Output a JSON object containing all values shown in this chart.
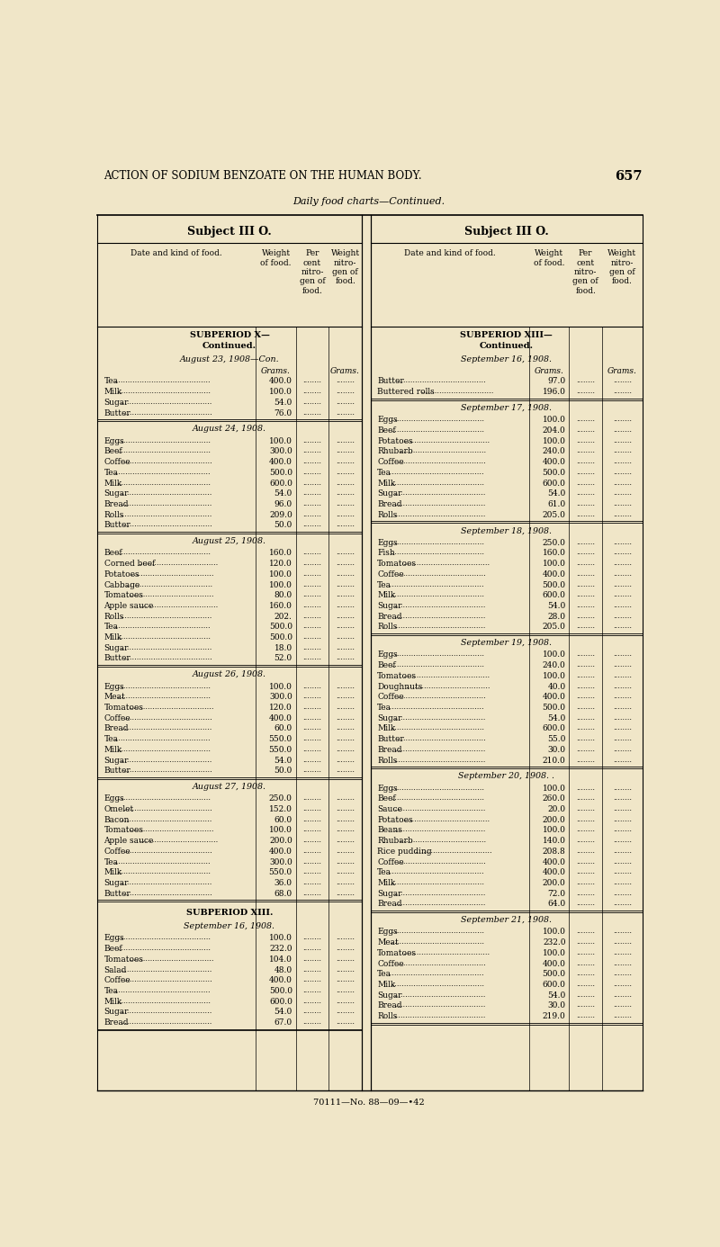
{
  "bg_color": "#f0e6c8",
  "page_title": "ACTION OF SODIUM BENZOATE ON THE HUMAN BODY.",
  "page_number": "657",
  "subtitle": "Daily food charts—Continued.",
  "header_left": "Subject III O.",
  "header_right": "Subject III O.",
  "col_headers": [
    "Date and kind of food.",
    "Weight\nof food.",
    "Per\ncent\nnitro-\ngen of\nfood.",
    "Weight\nnitro-\ngen of\nfood."
  ],
  "left_sections": [
    {
      "section_title": "SUBPERIOD X—\nContinued.",
      "subsections": [
        {
          "date": "August 23, 1908—Con.",
          "show_grams": true,
          "items": [
            [
              "Tea",
              "400.0"
            ],
            [
              "Milk",
              "100.0"
            ],
            [
              "Sugar",
              "54.0"
            ],
            [
              "Butter",
              "76.0"
            ]
          ]
        },
        {
          "date": "August 24, 1908.",
          "show_grams": false,
          "items": [
            [
              "Eggs",
              "100.0"
            ],
            [
              "Beef",
              "300.0"
            ],
            [
              "Coffee",
              "400.0"
            ],
            [
              "Tea",
              "500.0"
            ],
            [
              "Milk",
              "600.0"
            ],
            [
              "Sugar",
              "54.0"
            ],
            [
              "Bread",
              "96.0"
            ],
            [
              "Rolls",
              "209.0"
            ],
            [
              "Butter",
              "50.0"
            ]
          ]
        },
        {
          "date": "August 25, 1908.",
          "show_grams": false,
          "items": [
            [
              "Beef",
              "160.0"
            ],
            [
              "Corned beef",
              "120.0"
            ],
            [
              "Potatoes",
              "100.0"
            ],
            [
              "Cabbage",
              "100.0"
            ],
            [
              "Tomatoes",
              "80.0"
            ],
            [
              "Apple sauce",
              "160.0"
            ],
            [
              "Rolls",
              "202."
            ],
            [
              "Tea",
              "500.0"
            ],
            [
              "Milk",
              "500.0"
            ],
            [
              "Sugar",
              "18.0"
            ],
            [
              "Butter",
              "52.0"
            ]
          ]
        },
        {
          "date": "August 26, 1908.",
          "show_grams": false,
          "items": [
            [
              "Eggs",
              "100.0"
            ],
            [
              "Meat",
              "300.0"
            ],
            [
              "Tomatoes",
              "120.0"
            ],
            [
              "Coffee",
              "400.0"
            ],
            [
              "Bread",
              "60.0"
            ],
            [
              "Tea",
              "550.0"
            ],
            [
              "Milk",
              "550.0"
            ],
            [
              "Sugar",
              "54.0"
            ],
            [
              "Butter",
              "50.0"
            ]
          ]
        },
        {
          "date": "August 27, 1908.",
          "show_grams": false,
          "items": [
            [
              "Eggs",
              "250.0"
            ],
            [
              "Omelet",
              "152.0"
            ],
            [
              "Bacon",
              "60.0"
            ],
            [
              "Tomatoes",
              "100.0"
            ],
            [
              "Apple sauce",
              "200.0"
            ],
            [
              "Coffee",
              "400.0"
            ],
            [
              "Tea",
              "300.0"
            ],
            [
              "Milk",
              "550.0"
            ],
            [
              "Sugar",
              "36.0"
            ],
            [
              "Butter",
              "68.0"
            ]
          ]
        }
      ]
    },
    {
      "section_title": "SUBPERIOD XIII.",
      "subsections": [
        {
          "date": "September 16, 1908.",
          "show_grams": false,
          "items": [
            [
              "Eggs",
              "100.0"
            ],
            [
              "Beef",
              "232.0"
            ],
            [
              "Tomatoes",
              "104.0"
            ],
            [
              "Salad",
              "48.0"
            ],
            [
              "Coffee",
              "400.0"
            ],
            [
              "Tea",
              "500.0"
            ],
            [
              "Milk",
              "600.0"
            ],
            [
              "Sugar",
              "54.0"
            ],
            [
              "Bread",
              "67.0"
            ]
          ]
        }
      ]
    }
  ],
  "right_sections": [
    {
      "section_title": "SUBPERIOD XIII—\nContinued.",
      "subsections": [
        {
          "date": "September 16, 1908.",
          "show_grams": true,
          "items": [
            [
              "Butter",
              "97.0"
            ],
            [
              "Buttered rolls",
              "196.0"
            ]
          ]
        },
        {
          "date": "September 17, 1908.",
          "show_grams": false,
          "items": [
            [
              "Eggs",
              "100.0"
            ],
            [
              "Beef",
              "204.0"
            ],
            [
              "Potatoes",
              "100.0"
            ],
            [
              "Rhubarb",
              "240.0"
            ],
            [
              "Coffee",
              "400.0"
            ],
            [
              "Tea",
              "500.0"
            ],
            [
              "Milk",
              "600.0"
            ],
            [
              "Sugar",
              "54.0"
            ],
            [
              "Bread",
              "61.0"
            ],
            [
              "Rolls",
              "205.0"
            ]
          ]
        },
        {
          "date": "September 18, 1908.",
          "show_grams": false,
          "items": [
            [
              "Eggs",
              "250.0"
            ],
            [
              "Fish",
              "160.0"
            ],
            [
              "Tomatoes",
              "100.0"
            ],
            [
              "Coffee",
              "400.0"
            ],
            [
              "Tea",
              "500.0"
            ],
            [
              "Milk",
              "600.0"
            ],
            [
              "Sugar",
              "54.0"
            ],
            [
              "Bread",
              "28.0"
            ],
            [
              "Rolls",
              "205.0"
            ]
          ]
        },
        {
          "date": "September 19, 1908.",
          "show_grams": false,
          "items": [
            [
              "Eggs",
              "100.0"
            ],
            [
              "Beef",
              "240.0"
            ],
            [
              "Tomatoes",
              "100.0"
            ],
            [
              "Doughnuts",
              "40.0"
            ],
            [
              "Coffee",
              "400.0"
            ],
            [
              "Tea",
              "500.0"
            ],
            [
              "Sugar",
              "54.0"
            ],
            [
              "Milk",
              "600.0"
            ],
            [
              "Butter",
              "55.0"
            ],
            [
              "Bread",
              "30.0"
            ],
            [
              "Rolls",
              "210.0"
            ]
          ]
        },
        {
          "date": "September 20, 1908. .",
          "show_grams": false,
          "items": [
            [
              "Eggs",
              "100.0"
            ],
            [
              "Beef",
              "260.0"
            ],
            [
              "Sauce",
              "20.0"
            ],
            [
              "Potatoes",
              "200.0"
            ],
            [
              "Beans",
              "100.0"
            ],
            [
              "Rhubarb",
              "140.0"
            ],
            [
              "Rice pudding",
              "208.8"
            ],
            [
              "Coffee",
              "400.0"
            ],
            [
              "Tea",
              "400.0"
            ],
            [
              "Milk",
              "200.0"
            ],
            [
              "Sugar",
              "72.0"
            ],
            [
              "Bread",
              "64.0"
            ]
          ]
        },
        {
          "date": "September 21, 1908.",
          "show_grams": false,
          "items": [
            [
              "Eggs",
              "100.0"
            ],
            [
              "Meat",
              "232.0"
            ],
            [
              "Tomatoes",
              "100.0"
            ],
            [
              "Coffee",
              "400.0"
            ],
            [
              "Tea",
              "500.0"
            ],
            [
              "Milk",
              "600.0"
            ],
            [
              "Sugar",
              "54.0"
            ],
            [
              "Bread",
              "30.0"
            ],
            [
              "Rolls",
              "219.0"
            ]
          ]
        }
      ]
    }
  ],
  "footer": "70111—No. 88—09—•42"
}
